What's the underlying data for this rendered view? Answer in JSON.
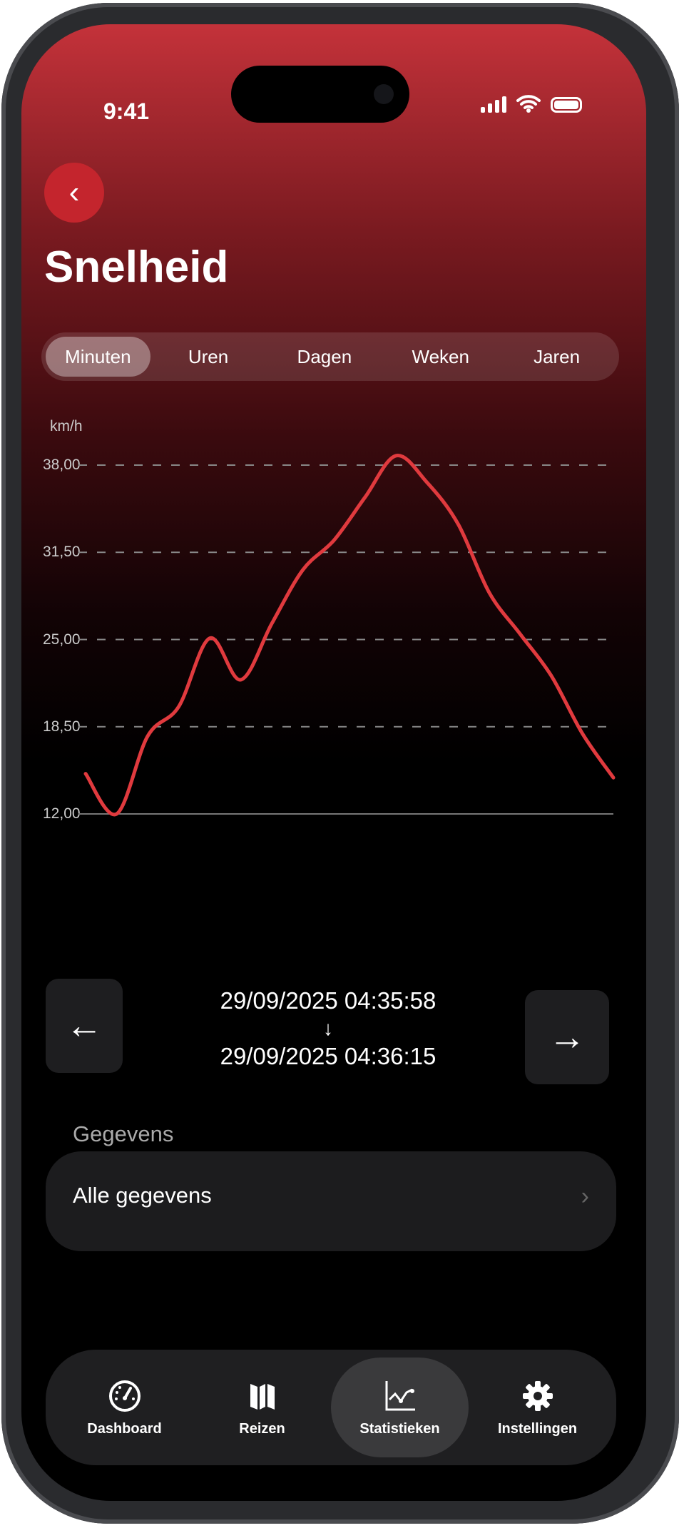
{
  "status_bar": {
    "time": "9:41"
  },
  "header": {
    "back_icon": "chevron-left-icon",
    "title": "Snelheid"
  },
  "segments": [
    {
      "label": "Minuten",
      "active": true
    },
    {
      "label": "Uren",
      "active": false
    },
    {
      "label": "Dagen",
      "active": false
    },
    {
      "label": "Weken",
      "active": false
    },
    {
      "label": "Jaren",
      "active": false
    }
  ],
  "chart_data": {
    "type": "line",
    "ylabel": "km/h",
    "ylim": [
      12,
      38
    ],
    "yticks": [
      "38,00",
      "31,50",
      "25,00",
      "18,50",
      "12,00"
    ],
    "ytick_values": [
      38,
      31.5,
      25,
      18.5,
      12
    ],
    "grid": "horizontal-dashed",
    "line_color": "#e03a3e",
    "series": [
      {
        "values": [
          15.0,
          12.0,
          17.8,
          20.0,
          25.1,
          22.0,
          26.2,
          30.2,
          32.4,
          35.6,
          38.7,
          36.7,
          33.6,
          28.5,
          25.4,
          22.3,
          18.0,
          14.7
        ]
      }
    ]
  },
  "range": {
    "start": "29/09/2025 04:35:58",
    "arrow": "↓",
    "end": "29/09/2025 04:36:15",
    "prev_icon": "arrow-left-icon",
    "next_icon": "arrow-right-icon"
  },
  "section": {
    "title": "Gegevens",
    "row_label": "Alle gegevens",
    "row_chevron": "›"
  },
  "tabbar": [
    {
      "label": "Dashboard",
      "icon": "gauge-icon",
      "active": false
    },
    {
      "label": "Reizen",
      "icon": "map-icon",
      "active": false
    },
    {
      "label": "Statistieken",
      "icon": "chart-icon",
      "active": true
    },
    {
      "label": "Instellingen",
      "icon": "gear-icon",
      "active": false
    }
  ],
  "colors": {
    "accent": "#c4252d",
    "line": "#e03a3e"
  }
}
